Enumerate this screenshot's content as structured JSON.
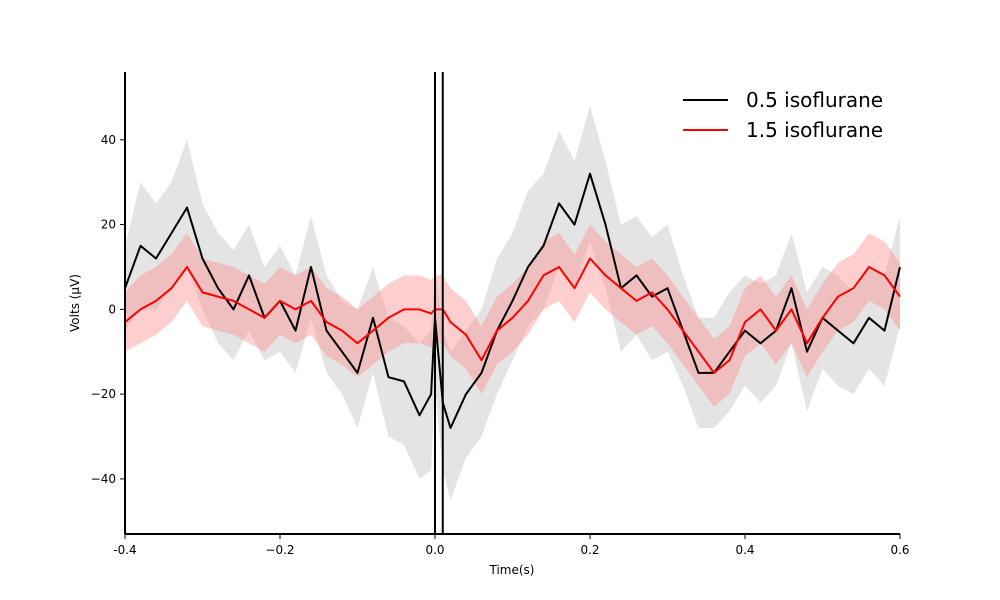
{
  "chart_data": {
    "type": "line",
    "title": "",
    "xlabel": "Time(s)",
    "ylabel": "Volts (μV)",
    "xlim": [
      -0.4,
      0.6
    ],
    "ylim": [
      -53,
      56
    ],
    "xticks": [
      -0.4,
      -0.2,
      0.0,
      0.2,
      0.4,
      0.6
    ],
    "xtick_labels": [
      "-0.4",
      "−0.2",
      "0.0",
      "0.2",
      "0.4",
      "0.6"
    ],
    "yticks": [
      -40,
      -20,
      0,
      20,
      40
    ],
    "ytick_labels": [
      "−40",
      "−20",
      "0",
      "20",
      "40"
    ],
    "grid": false,
    "legend_position": "top-right",
    "vlines": [
      0.0,
      0.01
    ],
    "x": [
      -0.4,
      -0.38,
      -0.36,
      -0.34,
      -0.32,
      -0.3,
      -0.28,
      -0.26,
      -0.24,
      -0.22,
      -0.2,
      -0.18,
      -0.16,
      -0.14,
      -0.12,
      -0.1,
      -0.08,
      -0.06,
      -0.04,
      -0.02,
      -0.005,
      0.0,
      0.01,
      0.02,
      0.04,
      0.06,
      0.08,
      0.1,
      0.12,
      0.14,
      0.16,
      0.18,
      0.2,
      0.22,
      0.24,
      0.26,
      0.28,
      0.3,
      0.32,
      0.34,
      0.36,
      0.38,
      0.4,
      0.42,
      0.44,
      0.46,
      0.48,
      0.5,
      0.52,
      0.54,
      0.56,
      0.58,
      0.6
    ],
    "series": [
      {
        "name": "0.5 isoflurane",
        "color": "#000000",
        "band_color": "#bfbfbf",
        "values": [
          5,
          15,
          12,
          18,
          24,
          12,
          5,
          0,
          8,
          -2,
          2,
          -5,
          10,
          -5,
          -10,
          -15,
          -2,
          -16,
          -17,
          -25,
          -20,
          -2,
          -22,
          -28,
          -20,
          -15,
          -5,
          2,
          10,
          15,
          25,
          20,
          32,
          20,
          5,
          8,
          3,
          5,
          -5,
          -15,
          -15,
          -10,
          -5,
          -8,
          -5,
          5,
          -10,
          -2,
          -5,
          -8,
          -2,
          -5,
          10
        ],
        "band": [
          [
            -5,
            15
          ],
          [
            0,
            30
          ],
          [
            0,
            25
          ],
          [
            5,
            30
          ],
          [
            10,
            40
          ],
          [
            0,
            25
          ],
          [
            -8,
            18
          ],
          [
            -12,
            14
          ],
          [
            -5,
            20
          ],
          [
            -12,
            10
          ],
          [
            -10,
            15
          ],
          [
            -15,
            8
          ],
          [
            -2,
            22
          ],
          [
            -15,
            8
          ],
          [
            -20,
            2
          ],
          [
            -28,
            0
          ],
          [
            -15,
            10
          ],
          [
            -30,
            -2
          ],
          [
            -32,
            -4
          ],
          [
            -40,
            -8
          ],
          [
            -38,
            -5
          ],
          [
            -18,
            10
          ],
          [
            -38,
            -5
          ],
          [
            -45,
            -10
          ],
          [
            -35,
            -5
          ],
          [
            -30,
            0
          ],
          [
            -20,
            12
          ],
          [
            -12,
            18
          ],
          [
            -4,
            28
          ],
          [
            0,
            32
          ],
          [
            10,
            42
          ],
          [
            5,
            35
          ],
          [
            16,
            48
          ],
          [
            5,
            35
          ],
          [
            -10,
            20
          ],
          [
            -6,
            22
          ],
          [
            -12,
            17
          ],
          [
            -10,
            20
          ],
          [
            -18,
            8
          ],
          [
            -28,
            -2
          ],
          [
            -28,
            -2
          ],
          [
            -24,
            4
          ],
          [
            -18,
            8
          ],
          [
            -22,
            6
          ],
          [
            -18,
            8
          ],
          [
            -8,
            18
          ],
          [
            -24,
            4
          ],
          [
            -14,
            10
          ],
          [
            -18,
            8
          ],
          [
            -20,
            4
          ],
          [
            -14,
            10
          ],
          [
            -18,
            8
          ],
          [
            -4,
            22
          ]
        ]
      },
      {
        "name": "1.5 isoflurane",
        "color": "#ff0000",
        "band_color": "#ff8c8c",
        "values": [
          -3,
          0,
          2,
          5,
          10,
          4,
          3,
          2,
          0,
          -2,
          2,
          0,
          2,
          -3,
          -5,
          -8,
          -5,
          -2,
          0,
          0,
          -1,
          0,
          0,
          -3,
          -6,
          -12,
          -5,
          -2,
          2,
          8,
          10,
          5,
          12,
          8,
          5,
          2,
          4,
          0,
          -5,
          -10,
          -15,
          -12,
          -3,
          0,
          -5,
          0,
          -8,
          -2,
          3,
          5,
          10,
          8,
          3
        ],
        "band": [
          [
            -10,
            4
          ],
          [
            -8,
            8
          ],
          [
            -6,
            10
          ],
          [
            -3,
            13
          ],
          [
            2,
            18
          ],
          [
            -4,
            12
          ],
          [
            -5,
            11
          ],
          [
            -6,
            10
          ],
          [
            -8,
            8
          ],
          [
            -10,
            6
          ],
          [
            -6,
            10
          ],
          [
            -8,
            8
          ],
          [
            -6,
            10
          ],
          [
            -11,
            5
          ],
          [
            -13,
            3
          ],
          [
            -16,
            0
          ],
          [
            -13,
            3
          ],
          [
            -10,
            6
          ],
          [
            -8,
            8
          ],
          [
            -8,
            8
          ],
          [
            -9,
            7
          ],
          [
            -8,
            8
          ],
          [
            -8,
            8
          ],
          [
            -11,
            5
          ],
          [
            -14,
            2
          ],
          [
            -20,
            -4
          ],
          [
            -13,
            3
          ],
          [
            -10,
            6
          ],
          [
            -6,
            10
          ],
          [
            0,
            16
          ],
          [
            2,
            18
          ],
          [
            -3,
            13
          ],
          [
            4,
            20
          ],
          [
            0,
            16
          ],
          [
            -3,
            13
          ],
          [
            -6,
            10
          ],
          [
            -4,
            12
          ],
          [
            -8,
            8
          ],
          [
            -13,
            3
          ],
          [
            -18,
            -2
          ],
          [
            -23,
            -7
          ],
          [
            -20,
            -4
          ],
          [
            -11,
            5
          ],
          [
            -8,
            8
          ],
          [
            -13,
            3
          ],
          [
            -8,
            8
          ],
          [
            -16,
            0
          ],
          [
            -10,
            6
          ],
          [
            -5,
            11
          ],
          [
            -3,
            13
          ],
          [
            2,
            18
          ],
          [
            0,
            16
          ],
          [
            -5,
            11
          ]
        ]
      }
    ]
  }
}
